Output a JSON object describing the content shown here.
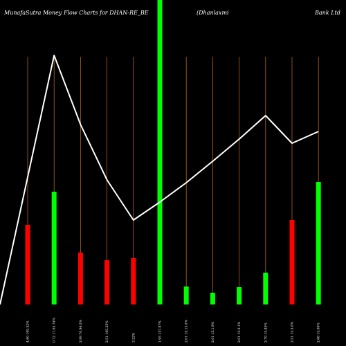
{
  "chart_data": {
    "type": "bar",
    "title_left": "MunafaSutra  Money Flow  Charts for DHAN-RE_BE",
    "title_mid": "(Dhanlaxmi",
    "title_right": "Bank Ltd",
    "categories": [
      "4.60 195.52%",
      "0.72 17.63.74%",
      "2.99 70.94.0%",
      "2.51 195.25%",
      "3.22%",
      "1.95 157.87%",
      "2.01 15.13.0%",
      "2.01 15.1.9%",
      "2.01 15.0.1%",
      "2.79 15.85%",
      "2.51 15.5.0%",
      "2.68 15.06%"
    ],
    "bars": [
      {
        "value": 115,
        "color": "#ff0000"
      },
      {
        "value": 163,
        "color": "#00ff00"
      },
      {
        "value": 75,
        "color": "#ff0000"
      },
      {
        "value": 64,
        "color": "#ff0000"
      },
      {
        "value": 67,
        "color": "#ff0000"
      },
      {
        "value": 600,
        "color": "#00ff00"
      },
      {
        "value": 26,
        "color": "#00ff00"
      },
      {
        "value": 17,
        "color": "#00ff00"
      },
      {
        "value": 25,
        "color": "#00ff00"
      },
      {
        "value": 46,
        "color": "#00ff00"
      },
      {
        "value": 122,
        "color": "#ff0000"
      },
      {
        "value": 177,
        "color": "#00ff00"
      }
    ],
    "price_line": [
      0,
      360,
      260,
      180,
      122,
      148,
      176,
      207,
      239,
      273,
      233,
      250
    ],
    "line_start_value": 0,
    "colors": {
      "background": "#000000",
      "up": "#00ff00",
      "down": "#ff0000",
      "line": "#ffffff",
      "guide": "#b5651d",
      "text": "#ffffff"
    },
    "grid": false,
    "legend": "none"
  }
}
